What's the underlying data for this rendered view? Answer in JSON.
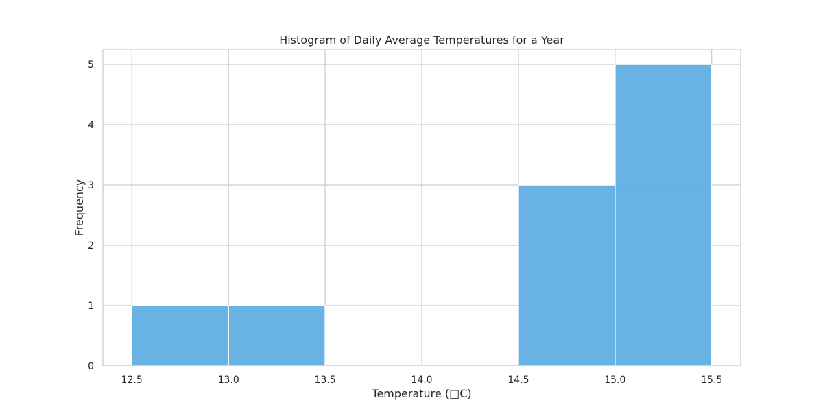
{
  "chart_data": {
    "type": "bar",
    "title": "Histogram of Daily Average Temperatures for a Year",
    "xlabel": "Temperature (□C)",
    "ylabel": "Frequency",
    "bins": [
      {
        "start": 12.5,
        "end": 13.0,
        "value": 1
      },
      {
        "start": 13.0,
        "end": 13.5,
        "value": 1
      },
      {
        "start": 13.5,
        "end": 14.0,
        "value": 0
      },
      {
        "start": 14.0,
        "end": 14.5,
        "value": 0
      },
      {
        "start": 14.5,
        "end": 15.0,
        "value": 3
      },
      {
        "start": 15.0,
        "end": 15.5,
        "value": 5
      }
    ],
    "xlim": [
      12.35,
      15.65
    ],
    "ylim": [
      0,
      5.25
    ],
    "xticks": [
      "12.5",
      "13.0",
      "13.5",
      "14.0",
      "14.5",
      "15.0",
      "15.5"
    ],
    "yticks": [
      "0",
      "1",
      "2",
      "3",
      "4",
      "5"
    ],
    "grid": true,
    "bar_color": "#5DADE2",
    "grid_color": "#cccccc"
  }
}
